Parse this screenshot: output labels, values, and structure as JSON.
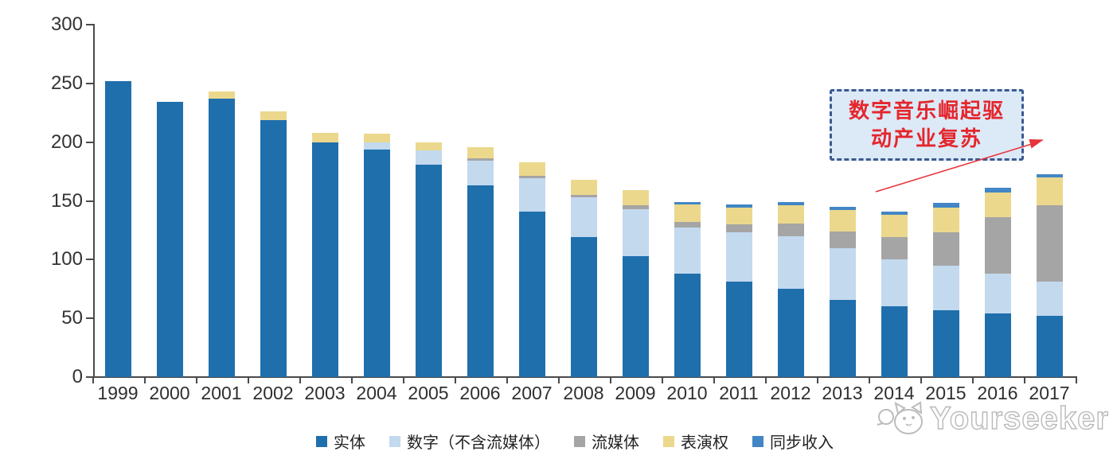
{
  "chart_data": {
    "type": "bar",
    "stacked": true,
    "title": "",
    "xlabel": "",
    "ylabel": "",
    "ylim": [
      0,
      300
    ],
    "yticks": [
      0,
      50,
      100,
      150,
      200,
      250,
      300
    ],
    "grid": false,
    "legend_position": "bottom",
    "categories": [
      "1999",
      "2000",
      "2001",
      "2002",
      "2003",
      "2004",
      "2005",
      "2006",
      "2007",
      "2008",
      "2009",
      "2010",
      "2011",
      "2012",
      "2013",
      "2014",
      "2015",
      "2016",
      "2017"
    ],
    "series": [
      {
        "key": "physical",
        "name": "实体",
        "color": "#1F6FAC",
        "values": [
          252,
          234,
          237,
          219,
          200,
          194,
          181,
          163,
          141,
          119,
          103,
          88,
          81,
          75,
          66,
          60,
          57,
          54,
          52
        ]
      },
      {
        "key": "digital-excl-streaming",
        "name": "数字（不含流媒体）",
        "color": "#C3D9EE",
        "values": [
          0,
          0,
          0,
          0,
          0,
          6,
          12,
          21,
          28,
          34,
          40,
          39,
          42,
          45,
          44,
          40,
          38,
          34,
          29
        ]
      },
      {
        "key": "streaming",
        "name": "流媒体",
        "color": "#A5A5A5",
        "values": [
          0,
          0,
          0,
          0,
          0,
          0,
          0,
          2,
          2,
          2,
          3,
          5,
          7,
          11,
          14,
          19,
          28,
          48,
          65
        ]
      },
      {
        "key": "performance-rights",
        "name": "表演权",
        "color": "#ECD88C",
        "values": [
          0,
          0,
          6,
          7,
          8,
          7,
          7,
          10,
          12,
          13,
          13,
          15,
          14,
          15,
          18,
          19,
          21,
          21,
          24
        ]
      },
      {
        "key": "sync",
        "name": "同步收入",
        "color": "#4286C5",
        "values": [
          0,
          0,
          0,
          0,
          0,
          0,
          0,
          0,
          0,
          0,
          0,
          2,
          3,
          3,
          3,
          3,
          4,
          4,
          3
        ]
      }
    ]
  },
  "annotation": {
    "lines": [
      "数字音乐崛起驱",
      "动产业复苏"
    ],
    "text_color": "#E5262D",
    "box_fill": "#DCE9F7",
    "border_color": "#3B5A8F",
    "arrow_color": "#E8343C"
  },
  "watermark": {
    "text": "Yourseeker",
    "logo": "cat-logo"
  }
}
